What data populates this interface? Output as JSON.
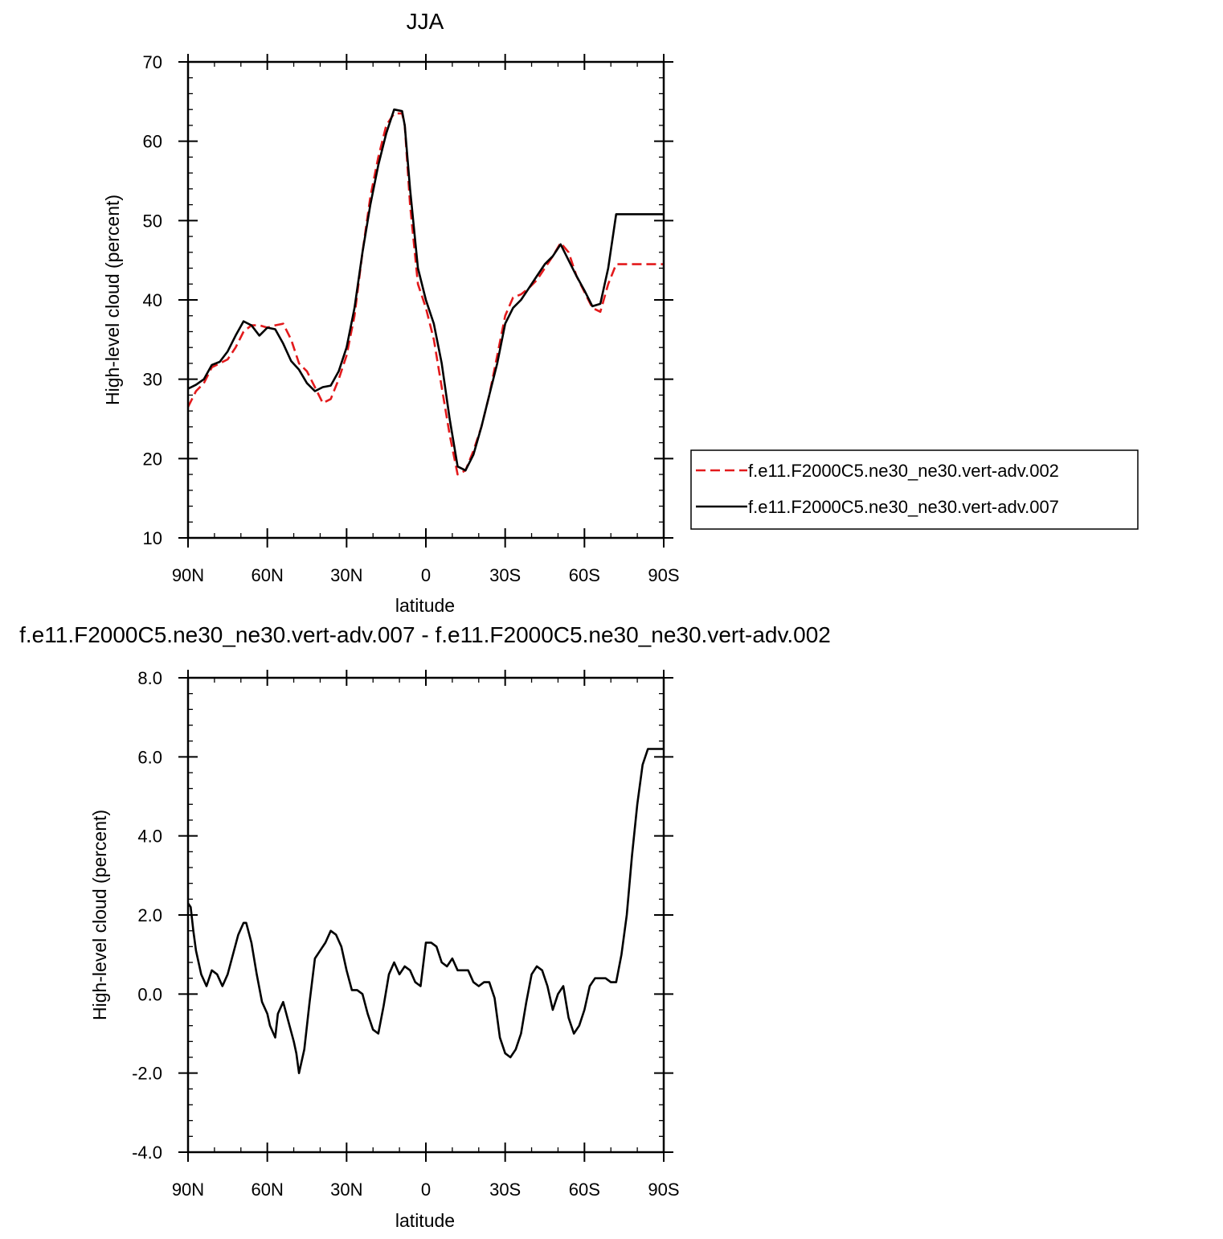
{
  "chart_data": [
    {
      "type": "line",
      "title": "JJA",
      "xlabel": "latitude",
      "ylabel": "High-level cloud (percent)",
      "xlim": [
        90,
        -90
      ],
      "ylim": [
        10,
        70
      ],
      "xticks": [
        90,
        60,
        30,
        0,
        -30,
        -60,
        -90
      ],
      "xtick_labels": [
        "90N",
        "60N",
        "30N",
        "0",
        "30S",
        "60S",
        "90S"
      ],
      "yticks": [
        10,
        20,
        30,
        40,
        50,
        60,
        70
      ],
      "ytick_labels": [
        "10",
        "20",
        "30",
        "40",
        "50",
        "60",
        "70"
      ],
      "legend_position": "right",
      "series": [
        {
          "name": "f.e11.F2000C5.ne30_ne30.vert-adv.002",
          "color": "#e31a1c",
          "dash": "dashed",
          "x": [
            90,
            87,
            84,
            81,
            78,
            75,
            72,
            69,
            66,
            63,
            60,
            57,
            54,
            51,
            48,
            45,
            42,
            39,
            36,
            33,
            30,
            27,
            24,
            21,
            18,
            15,
            12,
            9,
            8,
            6,
            3,
            0,
            -3,
            -6,
            -9,
            -12,
            -15,
            -18,
            -21,
            -24,
            -27,
            -30,
            -33,
            -36,
            -39,
            -42,
            -45,
            -48,
            -51,
            -54,
            -57,
            -60,
            -63,
            -66,
            -69,
            -72,
            -75,
            -78,
            -81,
            -84,
            -87,
            -90
          ],
          "y": [
            26.5,
            28.5,
            29.5,
            31.5,
            32,
            32.5,
            34,
            36,
            36.8,
            36.8,
            36.5,
            36.8,
            37,
            35,
            32,
            31,
            29,
            27,
            27.5,
            30,
            33,
            38,
            46,
            53,
            58,
            62,
            63.5,
            63.5,
            62,
            52,
            42,
            39,
            35,
            29,
            23,
            18,
            18.5,
            21,
            24,
            28,
            33,
            38,
            40.3,
            40.7,
            41.5,
            42.5,
            44,
            45.5,
            47.2,
            46,
            43,
            41,
            39,
            38.5,
            42,
            44.5,
            44.5,
            44.5,
            44.5,
            44.5,
            44.5,
            44.5
          ]
        },
        {
          "name": "f.e11.F2000C5.ne30_ne30.vert-adv.007",
          "color": "#000000",
          "dash": "solid",
          "x": [
            90,
            87,
            84,
            81,
            78,
            75,
            72,
            69,
            66,
            63,
            60,
            57,
            54,
            51,
            48,
            45,
            42,
            39,
            36,
            33,
            30,
            27,
            24,
            21,
            18,
            15,
            12,
            9,
            8,
            6,
            3,
            0,
            -3,
            -6,
            -9,
            -12,
            -15,
            -18,
            -21,
            -24,
            -27,
            -30,
            -33,
            -36,
            -39,
            -42,
            -45,
            -48,
            -51,
            -54,
            -57,
            -60,
            -63,
            -66,
            -69,
            -72,
            -75,
            -78,
            -81,
            -84,
            -87,
            -90
          ],
          "y": [
            28.8,
            29.3,
            30,
            31.8,
            32.2,
            33.5,
            35.5,
            37.3,
            36.8,
            35.5,
            36.5,
            36.3,
            34.5,
            32.3,
            31.2,
            29.5,
            28.5,
            29,
            29.2,
            31,
            34,
            39,
            46,
            52,
            57,
            61,
            64,
            63.8,
            62,
            54,
            44,
            40,
            37,
            32,
            25,
            19,
            18.5,
            20.5,
            24,
            28,
            32,
            37,
            39,
            40,
            41.5,
            43,
            44.5,
            45.5,
            47,
            45,
            43,
            41.2,
            39.2,
            39.5,
            44,
            50.8,
            50.8,
            50.8,
            50.8,
            50.8,
            50.8,
            50.8
          ]
        }
      ]
    },
    {
      "type": "line",
      "title": "f.e11.F2000C5.ne30_ne30.vert-adv.007 - f.e11.F2000C5.ne30_ne30.vert-adv.002",
      "xlabel": "latitude",
      "ylabel": "High-level cloud (percent)",
      "xlim": [
        90,
        -90
      ],
      "ylim": [
        -4,
        8
      ],
      "xticks": [
        90,
        60,
        30,
        0,
        -30,
        -60,
        -90
      ],
      "xtick_labels": [
        "90N",
        "60N",
        "30N",
        "0",
        "30S",
        "60S",
        "90S"
      ],
      "yticks": [
        -4,
        -2,
        0,
        2,
        4,
        6,
        8
      ],
      "ytick_labels": [
        "-4.0",
        "-2.0",
        "0.0",
        "2.0",
        "4.0",
        "6.0",
        "8.0"
      ],
      "series": [
        {
          "color": "#000000",
          "dash": "solid",
          "x": [
            90,
            89,
            88,
            87,
            85,
            83,
            81,
            79,
            77,
            75,
            73,
            71,
            69,
            68,
            66,
            64,
            62,
            60,
            59,
            57,
            56,
            54,
            52,
            50,
            49,
            48,
            46,
            44,
            42,
            40,
            38,
            36,
            34,
            32,
            30,
            28,
            26,
            24,
            22,
            20,
            18,
            16,
            14,
            12,
            10,
            8,
            6,
            4,
            2,
            0,
            -2,
            -4,
            -6,
            -8,
            -10,
            -12,
            -14,
            -16,
            -18,
            -20,
            -22,
            -24,
            -26,
            -28,
            -30,
            -32,
            -34,
            -36,
            -38,
            -40,
            -42,
            -44,
            -46,
            -48,
            -50,
            -52,
            -54,
            -56,
            -58,
            -60,
            -62,
            -64,
            -66,
            -68,
            -70,
            -72,
            -74,
            -76,
            -78,
            -80,
            -82,
            -84,
            -86,
            -88,
            -89,
            -90
          ],
          "y": [
            2.3,
            2.2,
            1.6,
            1.1,
            0.5,
            0.2,
            0.6,
            0.5,
            0.2,
            0.5,
            1.0,
            1.5,
            1.8,
            1.8,
            1.3,
            0.5,
            -0.2,
            -0.5,
            -0.8,
            -1.1,
            -0.5,
            -0.2,
            -0.7,
            -1.2,
            -1.5,
            -2.0,
            -1.4,
            -0.2,
            0.9,
            1.1,
            1.3,
            1.6,
            1.5,
            1.2,
            0.6,
            0.1,
            0.1,
            0.0,
            -0.5,
            -0.9,
            -1.0,
            -0.3,
            0.5,
            0.8,
            0.5,
            0.7,
            0.6,
            0.3,
            0.2,
            1.3,
            1.3,
            1.2,
            0.8,
            0.7,
            0.9,
            0.6,
            0.6,
            0.6,
            0.3,
            0.2,
            0.3,
            0.3,
            -0.1,
            -1.1,
            -1.5,
            -1.6,
            -1.4,
            -1.0,
            -0.2,
            0.5,
            0.7,
            0.6,
            0.2,
            -0.4,
            0.0,
            0.2,
            -0.6,
            -1.0,
            -0.8,
            -0.4,
            0.2,
            0.4,
            0.4,
            0.4,
            0.3,
            0.3,
            1.0,
            2.0,
            3.5,
            4.8,
            5.8,
            6.2,
            6.2,
            6.2,
            6.2,
            6.2
          ]
        }
      ]
    }
  ]
}
